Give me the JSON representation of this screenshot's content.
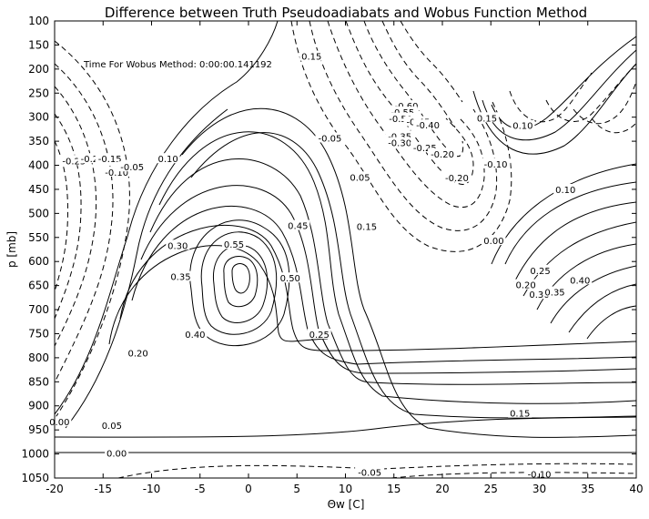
{
  "chart_data": {
    "type": "contour",
    "title": "Difference between Truth Pseudoadiabats and Wobus Function Method",
    "xlabel": "Θw [C]",
    "ylabel": "p [mb]",
    "annotation": "Time For Wobus Method: 0:00:00.141192",
    "xlim": [
      -20,
      40
    ],
    "ylim": [
      1050,
      100
    ],
    "xticks": [
      -20,
      -15,
      -10,
      -5,
      0,
      5,
      10,
      15,
      20,
      25,
      30,
      35,
      40
    ],
    "yticks": [
      100,
      150,
      200,
      250,
      300,
      350,
      400,
      450,
      500,
      550,
      600,
      650,
      700,
      750,
      800,
      850,
      900,
      950,
      1000,
      1050
    ],
    "line_style": "solid for positive/zero levels, dashed for negative levels",
    "contour_labels": [
      {
        "text": "0.15",
        "x": 6.5,
        "p": 175
      },
      {
        "text": "-0.60",
        "x": 16.3,
        "p": 278
      },
      {
        "text": "-0.55",
        "x": 15.9,
        "p": 291
      },
      {
        "text": "-0.50",
        "x": 15.7,
        "p": 304
      },
      {
        "text": "-0.45",
        "x": 17.5,
        "p": 311
      },
      {
        "text": "-0.40",
        "x": 18.5,
        "p": 318
      },
      {
        "text": "-0.35",
        "x": 15.6,
        "p": 341
      },
      {
        "text": "-0.30",
        "x": 15.6,
        "p": 355
      },
      {
        "text": "-0.25",
        "x": 18.2,
        "p": 365
      },
      {
        "text": "-0.20",
        "x": 20.0,
        "p": 378
      },
      {
        "text": "-0.20",
        "x": 21.5,
        "p": 427
      },
      {
        "text": "-0.10",
        "x": 25.5,
        "p": 399
      },
      {
        "text": "-0.05",
        "x": 8.4,
        "p": 345
      },
      {
        "text": "0.05",
        "x": 11.5,
        "p": 426
      },
      {
        "text": "0.10",
        "x": 28.3,
        "p": 319
      },
      {
        "text": "0.15",
        "x": 24.6,
        "p": 303
      },
      {
        "text": "0.10",
        "x": 32.7,
        "p": 452
      },
      {
        "text": "-0.25",
        "x": -18.0,
        "p": 392
      },
      {
        "text": "-0.20",
        "x": -16.1,
        "p": 388
      },
      {
        "text": "-0.15",
        "x": -14.3,
        "p": 388
      },
      {
        "text": "-0.10",
        "x": -13.6,
        "p": 416
      },
      {
        "text": "-0.05",
        "x": -12.0,
        "p": 405
      },
      {
        "text": "0.10",
        "x": -8.3,
        "p": 388
      },
      {
        "text": "0.30",
        "x": -7.3,
        "p": 568
      },
      {
        "text": "0.35",
        "x": -7.0,
        "p": 633
      },
      {
        "text": "0.55",
        "x": -1.5,
        "p": 566
      },
      {
        "text": "0.45",
        "x": 5.1,
        "p": 527
      },
      {
        "text": "0.50",
        "x": 4.3,
        "p": 636
      },
      {
        "text": "0.25",
        "x": 7.3,
        "p": 753
      },
      {
        "text": "0.15",
        "x": 12.2,
        "p": 529
      },
      {
        "text": "0.40",
        "x": -5.5,
        "p": 753
      },
      {
        "text": "0.20",
        "x": -11.4,
        "p": 792
      },
      {
        "text": "0.00",
        "x": 25.3,
        "p": 558
      },
      {
        "text": "0.20",
        "x": 28.6,
        "p": 650
      },
      {
        "text": "0.25",
        "x": 30.1,
        "p": 620
      },
      {
        "text": "0.30",
        "x": 30.0,
        "p": 670
      },
      {
        "text": "0.35",
        "x": 31.6,
        "p": 665
      },
      {
        "text": "0.40",
        "x": 34.2,
        "p": 640
      },
      {
        "text": "0.05",
        "x": -14.1,
        "p": 942
      },
      {
        "text": "0.00",
        "x": -19.5,
        "p": 935
      },
      {
        "text": "0.15",
        "x": 28.0,
        "p": 917
      },
      {
        "text": "0.00",
        "x": -13.6,
        "p": 1000
      },
      {
        "text": "-0.05",
        "x": 12.5,
        "p": 1040
      },
      {
        "text": "-0.10",
        "x": 30.0,
        "p": 1043
      }
    ]
  }
}
